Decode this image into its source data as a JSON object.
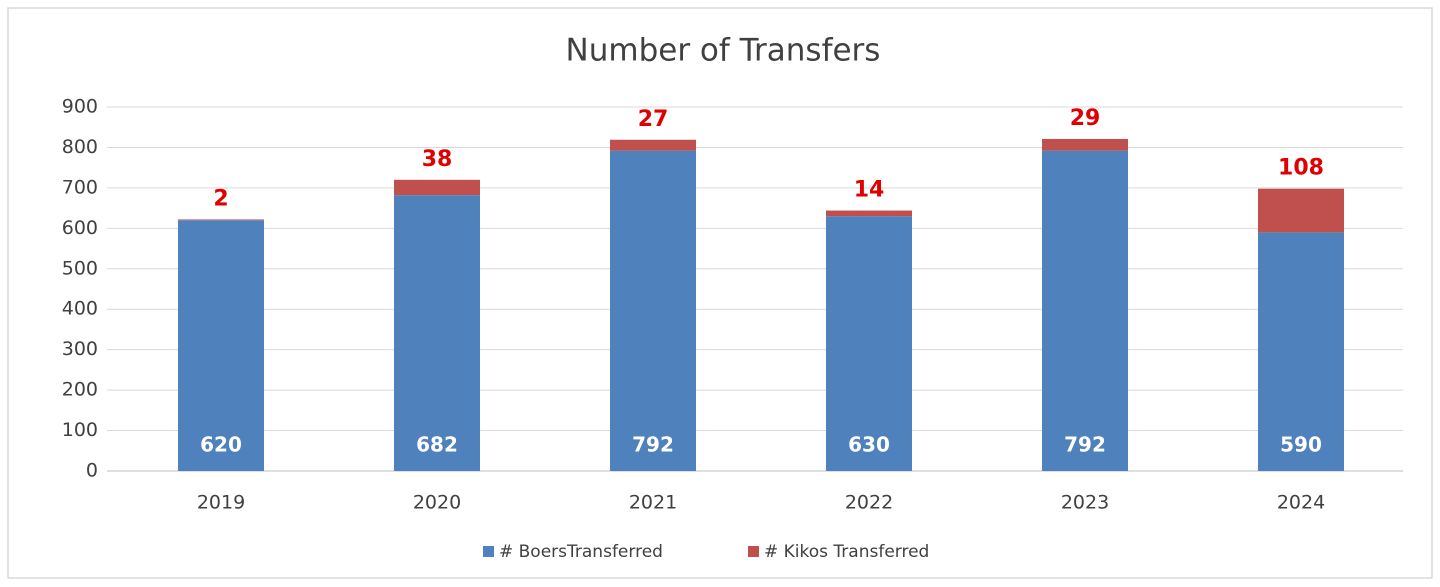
{
  "chart_data": {
    "type": "stacked_bar",
    "title": "Number of Transfers",
    "categories": [
      "2019",
      "2020",
      "2021",
      "2022",
      "2023",
      "2024"
    ],
    "series": [
      {
        "name": "# BoersTransferred",
        "color": "#4f81bd",
        "values": [
          620,
          682,
          792,
          630,
          792,
          590
        ]
      },
      {
        "name": "# Kikos Transferred",
        "color": "#c0504d",
        "values": [
          2,
          38,
          27,
          14,
          29,
          108
        ]
      }
    ],
    "ylim": [
      0,
      900
    ],
    "yticks": [
      0,
      100,
      200,
      300,
      400,
      500,
      600,
      700,
      800,
      900
    ],
    "grid": true,
    "legend": "bottom"
  }
}
